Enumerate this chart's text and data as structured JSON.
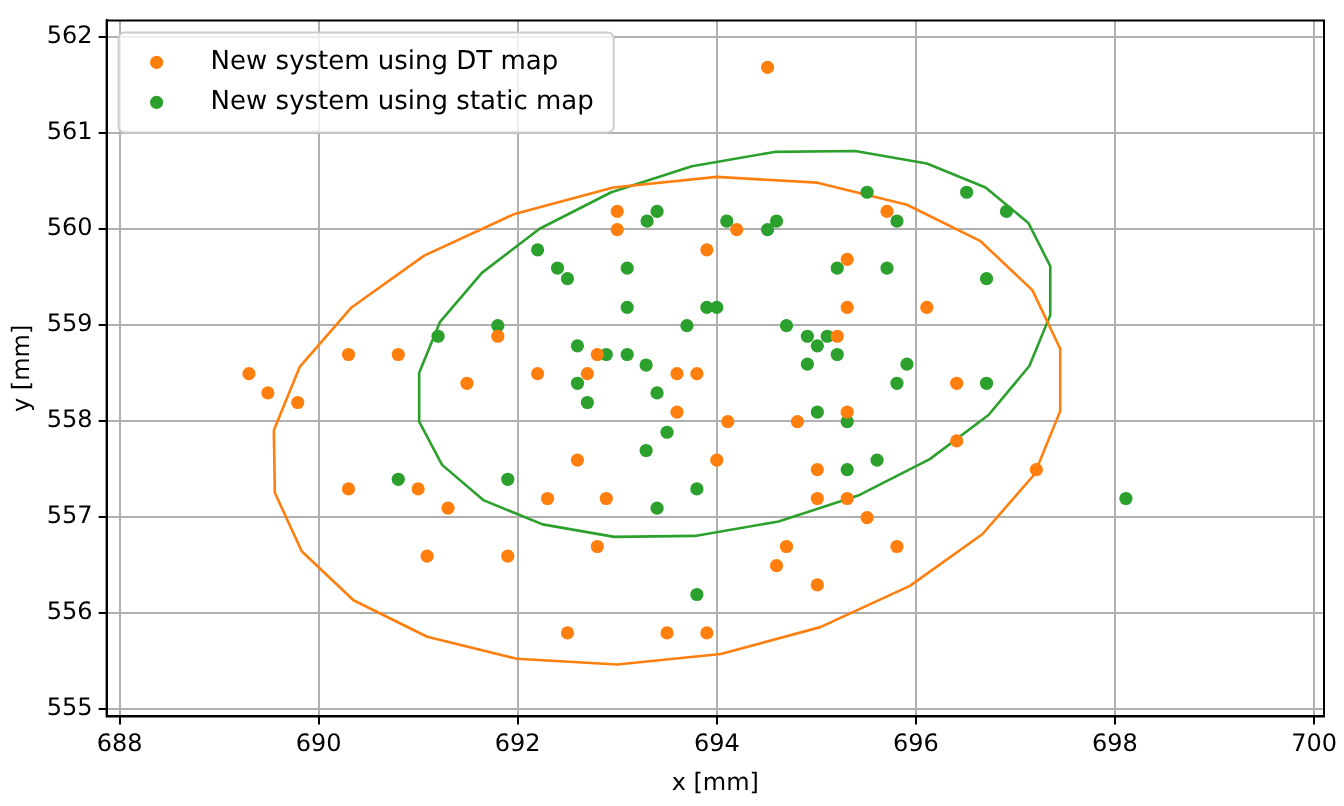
{
  "chart_data": {
    "type": "scatter",
    "xlabel": "x [mm]",
    "ylabel": "y [mm]",
    "xlim": [
      687.87,
      700.1
    ],
    "xticks": [
      688,
      690,
      692,
      694,
      696,
      698,
      700
    ],
    "ylim": [
      554.92,
      562.17
    ],
    "yticks": [
      555,
      556,
      557,
      558,
      559,
      560,
      561,
      562
    ],
    "grid": true,
    "legend": "top left",
    "marker": "circle",
    "series": [
      {
        "name": "New system using DT map",
        "color": "#ff7f0e",
        "x": [
          689.3,
          689.49,
          689.79,
          690.3,
          690.8,
          691.49,
          692.2,
          692.7,
          692.8,
          693.6,
          693.8,
          693.6,
          694.11,
          692.6,
          694.0,
          690.3,
          691.0,
          691.3,
          692.3,
          692.89,
          692.8,
          691.09,
          691.9,
          692.5,
          693.5,
          693.9,
          693.0,
          693.0,
          693.9,
          691.8,
          694.51,
          695.71,
          694.2,
          695.31,
          695.31,
          696.11,
          695.21,
          696.41,
          695.31,
          694.81,
          696.41,
          695.01,
          697.21,
          695.01,
          695.31,
          695.51,
          694.7,
          695.81,
          694.6,
          695.01
        ],
        "values": [
          558.49,
          558.29,
          558.19,
          558.69,
          558.69,
          558.39,
          558.49,
          558.49,
          558.69,
          558.49,
          558.49,
          558.09,
          557.99,
          557.59,
          557.59,
          557.29,
          557.29,
          557.09,
          557.19,
          557.19,
          556.69,
          556.59,
          556.59,
          555.79,
          555.79,
          555.79,
          560.18,
          559.99,
          559.78,
          558.88,
          561.68,
          560.18,
          559.99,
          559.68,
          559.18,
          559.18,
          558.88,
          558.39,
          558.09,
          557.99,
          557.79,
          557.49,
          557.49,
          557.19,
          557.19,
          556.99,
          556.69,
          556.69,
          556.49,
          556.29
        ]
      },
      {
        "name": "New system using static map",
        "color": "#2ca02c",
        "x": [
          692.6,
          692.89,
          693.1,
          693.29,
          692.6,
          693.4,
          692.7,
          693.5,
          693.29,
          690.8,
          691.9,
          693.8,
          693.4,
          693.8,
          693.3,
          693.4,
          694.1,
          692.2,
          692.4,
          692.5,
          693.1,
          693.1,
          693.9,
          694.0,
          693.7,
          691.8,
          691.2,
          695.51,
          696.51,
          696.91,
          695.81,
          694.6,
          694.51,
          695.21,
          695.71,
          696.71,
          694.7,
          694.91,
          695.11,
          695.01,
          694.91,
          695.21,
          695.91,
          695.81,
          696.71,
          695.01,
          695.31,
          695.31,
          695.61,
          698.11
        ],
        "values": [
          558.78,
          558.69,
          558.69,
          558.58,
          558.39,
          558.29,
          558.19,
          557.88,
          557.69,
          557.39,
          557.39,
          557.29,
          557.09,
          556.19,
          560.08,
          560.18,
          560.08,
          559.78,
          559.59,
          559.48,
          559.59,
          559.18,
          559.18,
          559.18,
          558.99,
          558.99,
          558.88,
          560.38,
          560.38,
          560.18,
          560.08,
          560.08,
          559.99,
          559.59,
          559.59,
          559.48,
          558.99,
          558.88,
          558.88,
          558.78,
          558.59,
          558.69,
          558.59,
          558.39,
          558.39,
          558.09,
          557.99,
          557.49,
          557.59,
          557.19
        ]
      },
      {
        "type": "line",
        "color": "#ff7f0e",
        "marker": "none",
        "x": [
          689.55,
          689.81,
          690.33,
          691.06,
          691.96,
          692.96,
          694.0,
          695.01,
          695.91,
          696.65,
          697.17,
          697.45,
          697.45,
          null,
          689.55,
          689.56,
          689.83,
          690.35,
          691.09,
          691.99,
          693.0,
          694.04,
          695.04,
          695.94,
          696.67,
          697.19,
          697.45
        ],
        "values": [
          557.9,
          558.56,
          559.18,
          559.72,
          560.15,
          560.43,
          560.54,
          560.48,
          560.25,
          559.87,
          559.36,
          558.75,
          558.1,
          null,
          557.9,
          557.25,
          556.64,
          556.13,
          555.75,
          555.52,
          555.46,
          555.57,
          555.85,
          556.28,
          556.82,
          557.44,
          558.1
        ]
      },
      {
        "type": "line",
        "color": "#2ca02c",
        "marker": "none",
        "x": [
          691.01,
          691.22,
          691.64,
          692.22,
          692.94,
          693.75,
          694.58,
          695.39,
          696.11,
          696.7,
          697.13,
          697.35,
          697.35,
          null,
          691.01,
          691.01,
          691.24,
          691.66,
          692.25,
          692.97,
          693.78,
          694.62,
          695.42,
          696.14,
          696.73,
          697.14,
          697.35
        ],
        "values": [
          558.5,
          559.03,
          559.54,
          560.0,
          560.38,
          560.65,
          560.8,
          560.81,
          560.68,
          560.43,
          560.06,
          559.61,
          559.1,
          null,
          558.5,
          557.99,
          557.54,
          557.17,
          556.92,
          556.79,
          556.8,
          556.95,
          557.22,
          557.6,
          558.06,
          558.57,
          559.1
        ]
      }
    ]
  }
}
